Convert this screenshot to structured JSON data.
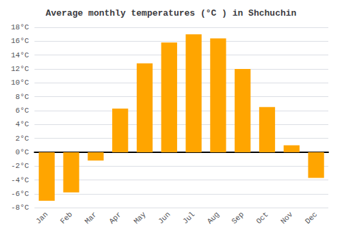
{
  "chart_data": {
    "type": "bar",
    "title": "Average monthly temperatures (°C ) in Shchuchin",
    "categories": [
      "Jan",
      "Feb",
      "Mar",
      "Apr",
      "May",
      "Jun",
      "Jul",
      "Aug",
      "Sep",
      "Oct",
      "Nov",
      "Dec"
    ],
    "values": [
      -7,
      -5.8,
      -1.2,
      6.3,
      12.8,
      15.8,
      17.0,
      16.4,
      12.0,
      6.5,
      1.0,
      -3.7
    ],
    "color": "#FFA500",
    "ylim": [
      -8,
      18
    ],
    "yticks": [
      {
        "value": -8,
        "label": "-8°C"
      },
      {
        "value": -6,
        "label": "-6°C"
      },
      {
        "value": -4,
        "label": "-4°C"
      },
      {
        "value": -2,
        "label": "-2°C"
      },
      {
        "value": 0,
        "label": "0°C"
      },
      {
        "value": 2,
        "label": "2°C"
      },
      {
        "value": 4,
        "label": "4°C"
      },
      {
        "value": 6,
        "label": "6°C"
      },
      {
        "value": 8,
        "label": "8°C"
      },
      {
        "value": 10,
        "label": "10°C"
      },
      {
        "value": 12,
        "label": "12°C"
      },
      {
        "value": 14,
        "label": "14°C"
      },
      {
        "value": 16,
        "label": "16°C"
      },
      {
        "value": 18,
        "label": "18°C"
      }
    ],
    "grid": true
  }
}
